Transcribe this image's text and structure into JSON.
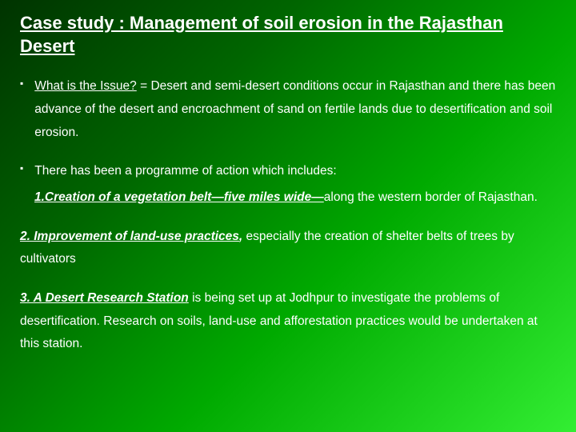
{
  "title": "Case study : Management of soil erosion in the Rajasthan Desert",
  "bullet": "▪",
  "issue_label": "What is the Issue?",
  "issue_text": " = Desert and semi-desert conditions occur in Rajasthan and there has been advance of the desert and encroachment of sand on fertile lands due to desertification and soil erosion.",
  "prog_text": "There has been a  programme of action which includes:",
  "p1_u": "1.Creation of a vegetation belt—five miles wide—",
  "p1_rest": "along  the western border of Rajasthan.",
  "p2_u": "2. Improvement of land-use practices",
  "p2_comma": ", ",
  "p2_rest": "especially the creation of shelter belts of trees by cultivators",
  "p3_u": "3. A Desert Research Station",
  "p3_rest": " is being set up at Jodhpur to investigate the problems of desertification. Research on soils, land-use and afforestation practices would be undertaken at this station.",
  "colors": {
    "text": "#ffffff",
    "bg_start": "#003300",
    "bg_end": "#33ee33"
  }
}
